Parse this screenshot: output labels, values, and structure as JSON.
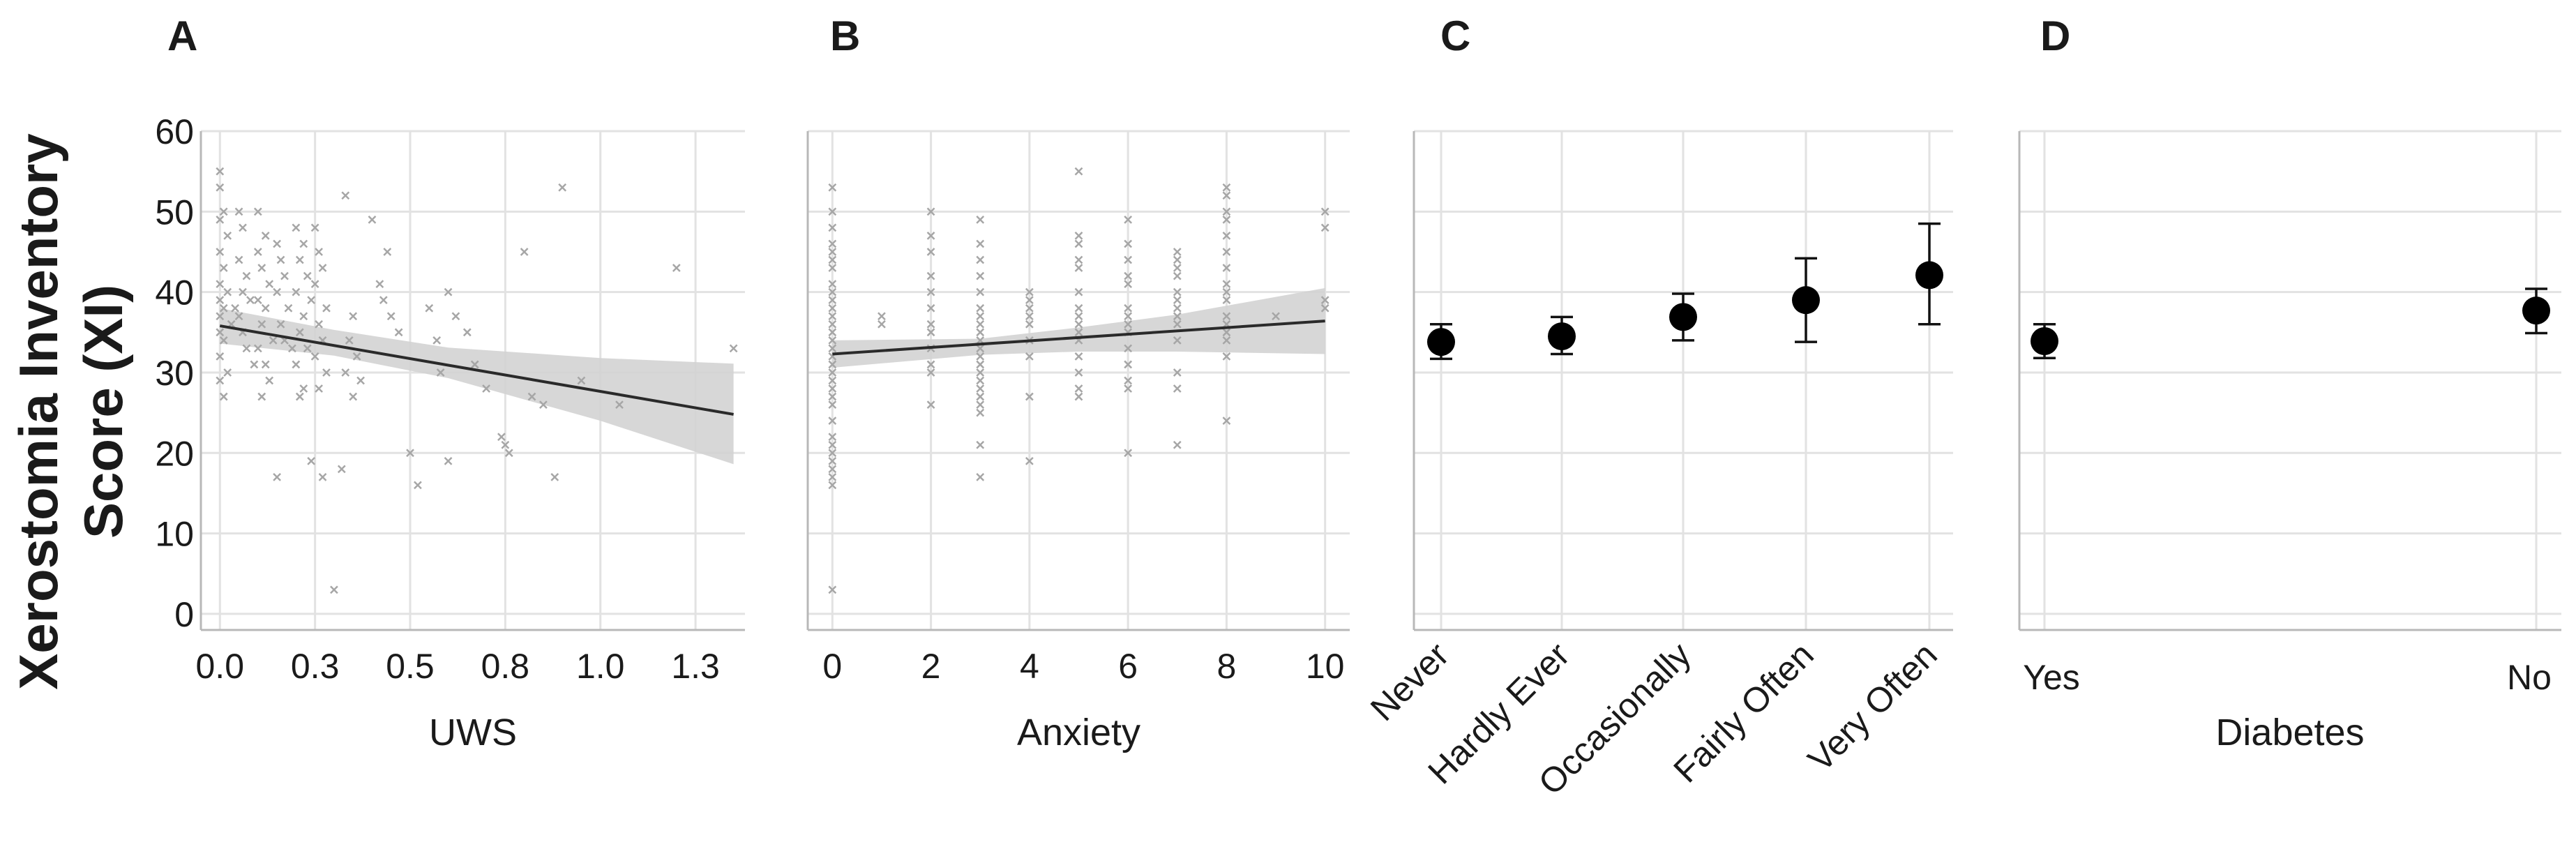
{
  "figure": {
    "ylabel_line1": "Xerostomia Inventory",
    "ylabel_line2": "Score  (XI)"
  },
  "colors": {
    "scatter": "#a6a6a6",
    "band": "#d3d3d3",
    "line": "#2a2a2a",
    "marker": "#000000"
  },
  "chart_data": [
    {
      "panel": "A",
      "type": "scatter",
      "xlabel": "UWS",
      "ylabel": "Xerostomia Inventory Score  (XI)",
      "xticks": [
        "0.0",
        "0.3",
        "0.5",
        "0.8",
        "1.0",
        "1.3"
      ],
      "xtick_values": [
        0.0,
        0.25,
        0.5,
        0.75,
        1.0,
        1.25
      ],
      "xlim": [
        -0.05,
        1.38
      ],
      "ylim": [
        -2,
        60
      ],
      "yticks": [
        0,
        10,
        20,
        30,
        40,
        50,
        60
      ],
      "grid": true,
      "points": [
        [
          0.0,
          55
        ],
        [
          0.0,
          53
        ],
        [
          0.01,
          50
        ],
        [
          0.0,
          49
        ],
        [
          0.02,
          47
        ],
        [
          0.0,
          45
        ],
        [
          0.01,
          43
        ],
        [
          0.0,
          41
        ],
        [
          0.02,
          40
        ],
        [
          0.0,
          39
        ],
        [
          0.01,
          38
        ],
        [
          0.0,
          37
        ],
        [
          0.03,
          36
        ],
        [
          0.0,
          35
        ],
        [
          0.01,
          34
        ],
        [
          0.0,
          32
        ],
        [
          0.02,
          30
        ],
        [
          0.0,
          29
        ],
        [
          0.01,
          27
        ],
        [
          0.04,
          38
        ],
        [
          0.05,
          50
        ],
        [
          0.06,
          48
        ],
        [
          0.05,
          44
        ],
        [
          0.07,
          42
        ],
        [
          0.06,
          40
        ],
        [
          0.08,
          39
        ],
        [
          0.05,
          37
        ],
        [
          0.06,
          35
        ],
        [
          0.07,
          33
        ],
        [
          0.09,
          31
        ],
        [
          0.1,
          50
        ],
        [
          0.12,
          47
        ],
        [
          0.1,
          45
        ],
        [
          0.11,
          43
        ],
        [
          0.13,
          41
        ],
        [
          0.1,
          39
        ],
        [
          0.12,
          38
        ],
        [
          0.11,
          36
        ],
        [
          0.14,
          34
        ],
        [
          0.1,
          33
        ],
        [
          0.12,
          31
        ],
        [
          0.13,
          29
        ],
        [
          0.11,
          27
        ],
        [
          0.15,
          46
        ],
        [
          0.16,
          44
        ],
        [
          0.17,
          42
        ],
        [
          0.15,
          40
        ],
        [
          0.18,
          38
        ],
        [
          0.16,
          36
        ],
        [
          0.17,
          34
        ],
        [
          0.19,
          33
        ],
        [
          0.15,
          17
        ],
        [
          0.2,
          48
        ],
        [
          0.22,
          46
        ],
        [
          0.21,
          44
        ],
        [
          0.23,
          42
        ],
        [
          0.2,
          40
        ],
        [
          0.24,
          39
        ],
        [
          0.22,
          37
        ],
        [
          0.21,
          35
        ],
        [
          0.23,
          33
        ],
        [
          0.2,
          31
        ],
        [
          0.22,
          28
        ],
        [
          0.21,
          27
        ],
        [
          0.25,
          48
        ],
        [
          0.26,
          45
        ],
        [
          0.27,
          43
        ],
        [
          0.25,
          41
        ],
        [
          0.28,
          38
        ],
        [
          0.26,
          36
        ],
        [
          0.27,
          34
        ],
        [
          0.25,
          32
        ],
        [
          0.28,
          30
        ],
        [
          0.26,
          28
        ],
        [
          0.24,
          19
        ],
        [
          0.27,
          17
        ],
        [
          0.3,
          3
        ],
        [
          0.32,
          18
        ],
        [
          0.33,
          52
        ],
        [
          0.35,
          37
        ],
        [
          0.34,
          34
        ],
        [
          0.36,
          32
        ],
        [
          0.33,
          30
        ],
        [
          0.37,
          29
        ],
        [
          0.35,
          27
        ],
        [
          0.4,
          49
        ],
        [
          0.42,
          41
        ],
        [
          0.44,
          45
        ],
        [
          0.43,
          39
        ],
        [
          0.45,
          37
        ],
        [
          0.47,
          35
        ],
        [
          0.5,
          20
        ],
        [
          0.52,
          16
        ],
        [
          0.55,
          38
        ],
        [
          0.57,
          34
        ],
        [
          0.6,
          40
        ],
        [
          0.62,
          37
        ],
        [
          0.58,
          30
        ],
        [
          0.6,
          19
        ],
        [
          0.65,
          35
        ],
        [
          0.67,
          31
        ],
        [
          0.7,
          28
        ],
        [
          0.74,
          22
        ],
        [
          0.75,
          21
        ],
        [
          0.76,
          20
        ],
        [
          0.8,
          45
        ],
        [
          0.82,
          27
        ],
        [
          0.85,
          26
        ],
        [
          0.88,
          17
        ],
        [
          0.9,
          53
        ],
        [
          0.95,
          29
        ],
        [
          1.05,
          26
        ],
        [
          1.2,
          43
        ],
        [
          1.35,
          33
        ]
      ],
      "fit_line": [
        [
          0.0,
          35.8
        ],
        [
          1.35,
          24.8
        ]
      ],
      "band_upper": [
        [
          0.0,
          38.0
        ],
        [
          0.3,
          35.3
        ],
        [
          0.6,
          33.1
        ],
        [
          1.0,
          31.8
        ],
        [
          1.35,
          31.1
        ]
      ],
      "band_lower": [
        [
          0.0,
          33.6
        ],
        [
          0.3,
          32.1
        ],
        [
          0.6,
          29.3
        ],
        [
          1.0,
          24.0
        ],
        [
          1.35,
          18.6
        ]
      ]
    },
    {
      "panel": "B",
      "type": "scatter",
      "xlabel": "Anxiety",
      "ylabel": "Xerostomia Inventory Score  (XI)",
      "xticks": [
        "0",
        "2",
        "4",
        "6",
        "8",
        "10"
      ],
      "xtick_values": [
        0,
        2,
        4,
        6,
        8,
        10
      ],
      "xlim": [
        -0.5,
        10.5
      ],
      "ylim": [
        -2,
        60
      ],
      "yticks": [
        0,
        10,
        20,
        30,
        40,
        50,
        60
      ],
      "grid": true,
      "points": [
        [
          0,
          53
        ],
        [
          0,
          50
        ],
        [
          0,
          48
        ],
        [
          0,
          46
        ],
        [
          0,
          45
        ],
        [
          0,
          44
        ],
        [
          0,
          43
        ],
        [
          0,
          41
        ],
        [
          0,
          40
        ],
        [
          0,
          39
        ],
        [
          0,
          38
        ],
        [
          0,
          37
        ],
        [
          0,
          36
        ],
        [
          0,
          35
        ],
        [
          0,
          34
        ],
        [
          0,
          33
        ],
        [
          0,
          32
        ],
        [
          0,
          31
        ],
        [
          0,
          30
        ],
        [
          0,
          29
        ],
        [
          0,
          28
        ],
        [
          0,
          27
        ],
        [
          0,
          26
        ],
        [
          0,
          24
        ],
        [
          0,
          22
        ],
        [
          0,
          21
        ],
        [
          0,
          20
        ],
        [
          0,
          19
        ],
        [
          0,
          18
        ],
        [
          0,
          17
        ],
        [
          0,
          16
        ],
        [
          0,
          3
        ],
        [
          1,
          37
        ],
        [
          1,
          36
        ],
        [
          2,
          50
        ],
        [
          2,
          47
        ],
        [
          2,
          45
        ],
        [
          2,
          42
        ],
        [
          2,
          40
        ],
        [
          2,
          38
        ],
        [
          2,
          36
        ],
        [
          2,
          35
        ],
        [
          2,
          33
        ],
        [
          2,
          31
        ],
        [
          2,
          30
        ],
        [
          2,
          26
        ],
        [
          3,
          49
        ],
        [
          3,
          46
        ],
        [
          3,
          44
        ],
        [
          3,
          42
        ],
        [
          3,
          40
        ],
        [
          3,
          38
        ],
        [
          3,
          37
        ],
        [
          3,
          36
        ],
        [
          3,
          35
        ],
        [
          3,
          34
        ],
        [
          3,
          33
        ],
        [
          3,
          32
        ],
        [
          3,
          31
        ],
        [
          3,
          30
        ],
        [
          3,
          29
        ],
        [
          3,
          28
        ],
        [
          3,
          27
        ],
        [
          3,
          26
        ],
        [
          3,
          25
        ],
        [
          3,
          21
        ],
        [
          3,
          17
        ],
        [
          4,
          40
        ],
        [
          4,
          39
        ],
        [
          4,
          38
        ],
        [
          4,
          37
        ],
        [
          4,
          36
        ],
        [
          4,
          34
        ],
        [
          4,
          32
        ],
        [
          4,
          27
        ],
        [
          4,
          19
        ],
        [
          5,
          55
        ],
        [
          5,
          47
        ],
        [
          5,
          46
        ],
        [
          5,
          44
        ],
        [
          5,
          43
        ],
        [
          5,
          40
        ],
        [
          5,
          38
        ],
        [
          5,
          37
        ],
        [
          5,
          36
        ],
        [
          5,
          35
        ],
        [
          5,
          34
        ],
        [
          5,
          32
        ],
        [
          5,
          30
        ],
        [
          5,
          28
        ],
        [
          5,
          27
        ],
        [
          6,
          49
        ],
        [
          6,
          46
        ],
        [
          6,
          44
        ],
        [
          6,
          42
        ],
        [
          6,
          41
        ],
        [
          6,
          38
        ],
        [
          6,
          37
        ],
        [
          6,
          36
        ],
        [
          6,
          35
        ],
        [
          6,
          33
        ],
        [
          6,
          31
        ],
        [
          6,
          29
        ],
        [
          6,
          28
        ],
        [
          6,
          20
        ],
        [
          7,
          45
        ],
        [
          7,
          44
        ],
        [
          7,
          43
        ],
        [
          7,
          42
        ],
        [
          7,
          40
        ],
        [
          7,
          39
        ],
        [
          7,
          38
        ],
        [
          7,
          37
        ],
        [
          7,
          36
        ],
        [
          7,
          34
        ],
        [
          7,
          30
        ],
        [
          7,
          28
        ],
        [
          7,
          21
        ],
        [
          8,
          53
        ],
        [
          8,
          52
        ],
        [
          8,
          50
        ],
        [
          8,
          49
        ],
        [
          8,
          47
        ],
        [
          8,
          45
        ],
        [
          8,
          43
        ],
        [
          8,
          41
        ],
        [
          8,
          40
        ],
        [
          8,
          39
        ],
        [
          8,
          37
        ],
        [
          8,
          36
        ],
        [
          8,
          35
        ],
        [
          8,
          34
        ],
        [
          8,
          32
        ],
        [
          8,
          24
        ],
        [
          9,
          37
        ],
        [
          10,
          50
        ],
        [
          10,
          48
        ],
        [
          10,
          39
        ],
        [
          10,
          38
        ]
      ],
      "fit_line": [
        [
          0,
          32.3
        ],
        [
          10,
          36.4
        ]
      ],
      "band_upper": [
        [
          0,
          34.0
        ],
        [
          3,
          34.2
        ],
        [
          5,
          35.6
        ],
        [
          7,
          37.2
        ],
        [
          10,
          40.5
        ]
      ],
      "band_lower": [
        [
          0,
          30.6
        ],
        [
          3,
          32.2
        ],
        [
          5,
          32.6
        ],
        [
          7,
          32.6
        ],
        [
          10,
          32.3
        ]
      ]
    },
    {
      "panel": "C",
      "type": "errorbar",
      "xlabel": "",
      "categories": [
        "Never",
        "Hardly Ever",
        "Occasionally",
        "Fairly Often",
        "Very Often"
      ],
      "means": [
        33.8,
        34.5,
        36.9,
        39.0,
        42.1
      ],
      "ci_low": [
        31.7,
        32.3,
        34.0,
        33.8,
        36.0
      ],
      "ci_high": [
        36.0,
        36.9,
        39.8,
        44.2,
        48.5
      ],
      "ylim": [
        -2,
        60
      ],
      "yticks": [
        0,
        10,
        20,
        30,
        40,
        50,
        60
      ],
      "grid": true
    },
    {
      "panel": "D",
      "type": "errorbar",
      "xlabel": "Diabetes",
      "categories": [
        "Yes",
        "No"
      ],
      "means": [
        33.9,
        37.7
      ],
      "ci_low": [
        31.8,
        34.9
      ],
      "ci_high": [
        36.0,
        40.4
      ],
      "ylim": [
        -2,
        60
      ],
      "yticks": [
        0,
        10,
        20,
        30,
        40,
        50,
        60
      ],
      "grid": true
    }
  ]
}
